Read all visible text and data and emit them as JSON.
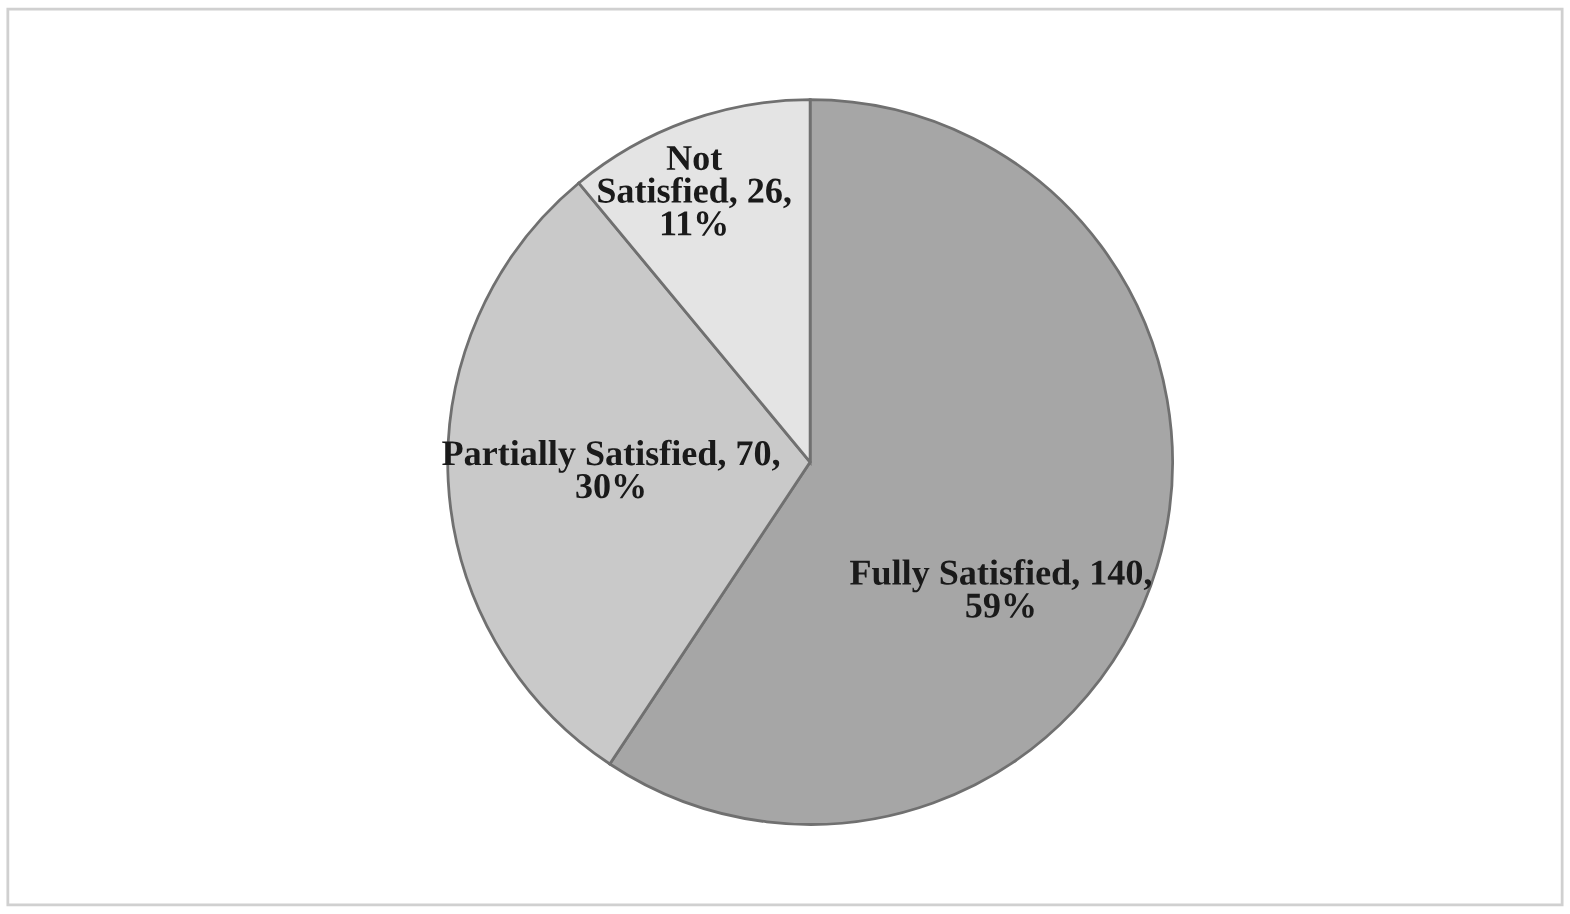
{
  "chart_data": {
    "type": "pie",
    "categories": [
      "Fully Satisfied",
      "Partially Satisfied",
      "Not Satisfied"
    ],
    "values": [
      140,
      70,
      26
    ],
    "value_labels": [
      "140, 59%",
      "70, 30%",
      "26, 11%"
    ],
    "colors": [
      "#a6a6a6",
      "#c9c9c9",
      "#e4e4e4"
    ],
    "legend": false
  }
}
